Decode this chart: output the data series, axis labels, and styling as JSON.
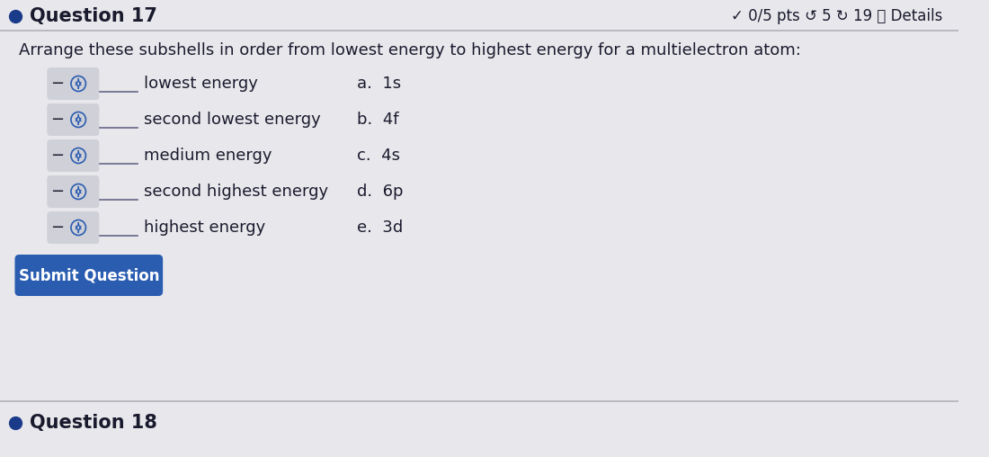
{
  "bg_color": "#e8e8ec",
  "title_text": "Question 17",
  "title_dot_color": "#1a3a8a",
  "header_right_text": "✓ 0/5 pts ↺ 5 ↻ 19 ⓘ Details",
  "question_text": "Arrange these subshells in order from lowest energy to highest energy for a multielectron atom:",
  "rows": [
    {
      "label": "lowest energy",
      "choice": "a.  1s"
    },
    {
      "label": "second lowest energy",
      "choice": "b.  4f"
    },
    {
      "label": "medium energy",
      "choice": "c.  4s"
    },
    {
      "label": "second highest energy",
      "choice": "d.  6p"
    },
    {
      "label": "highest energy",
      "choice": "e.  3d"
    }
  ],
  "submit_btn_text": "Submit Question",
  "submit_btn_color": "#2a5db0",
  "submit_btn_text_color": "#ffffff",
  "question18_text": "Question 18",
  "separator_color": "#b0b0b8",
  "font_color": "#1a1a2e",
  "spinner_color": "#2a5db0",
  "row_bg_color": "#d0d0d8",
  "spinner_outline_color": "#2a5db0"
}
